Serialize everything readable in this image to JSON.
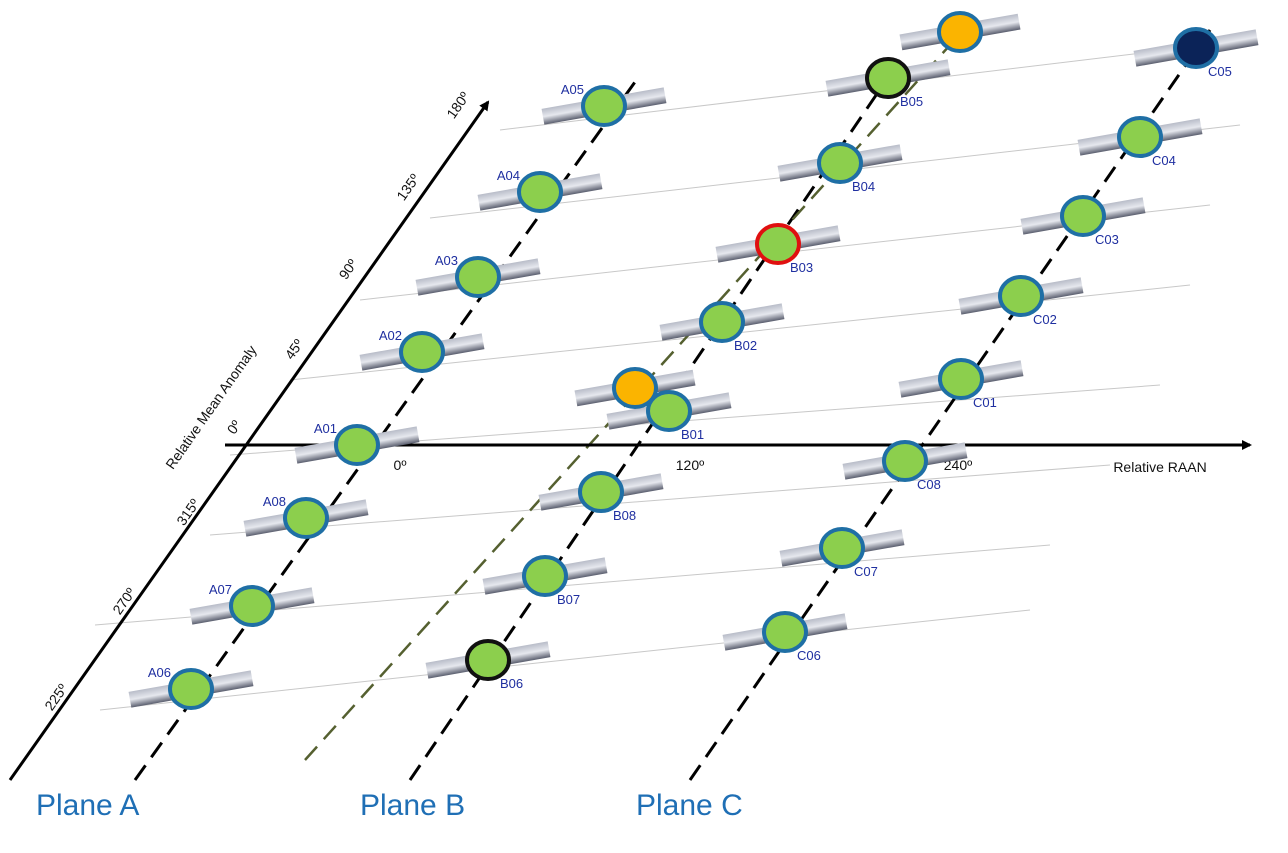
{
  "axes": {
    "anomaly_label": "Relative Mean Anomaly",
    "raan_label": "Relative RAAN",
    "anomaly_ticks": [
      "225º",
      "270º",
      "315º",
      "0º",
      "45º",
      "90º",
      "135º",
      "180º"
    ],
    "raan_ticks": [
      "0º",
      "120º",
      "240º"
    ]
  },
  "satellites": [
    {
      "label": "A01"
    },
    {
      "label": "A02"
    },
    {
      "label": "A03"
    },
    {
      "label": "A04"
    },
    {
      "label": "A05"
    },
    {
      "label": "A08"
    },
    {
      "label": "A07"
    },
    {
      "label": "A06"
    },
    {
      "label": "B01"
    },
    {
      "label": "B02"
    },
    {
      "label": "B03"
    },
    {
      "label": "B04"
    },
    {
      "label": "B05"
    },
    {
      "label": "B08"
    },
    {
      "label": "B07"
    },
    {
      "label": "B06"
    },
    {
      "label": "C01"
    },
    {
      "label": "C02"
    },
    {
      "label": "C03"
    },
    {
      "label": "C04"
    },
    {
      "label": "C05"
    },
    {
      "label": "C08"
    },
    {
      "label": "C07"
    },
    {
      "label": "C06"
    }
  ],
  "planes": [
    "Plane A",
    "Plane B",
    "Plane C"
  ]
}
